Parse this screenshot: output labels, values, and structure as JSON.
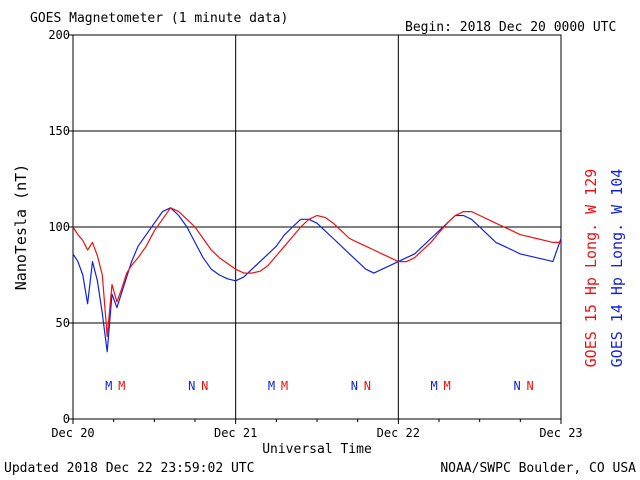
{
  "header": {
    "title": "GOES Magnetometer (1 minute data)",
    "begin": "Begin:  2018 Dec 20 0000 UTC"
  },
  "footer": {
    "updated": "Updated 2018 Dec 22 23:59:02 UTC",
    "credit": "NOAA/SWPC Boulder, CO USA"
  },
  "legend": {
    "goes15": "GOES 15 Hp  Long. W 129",
    "goes14": "GOES 14 Hp  Long. W 104"
  },
  "colors": {
    "goes15": "#ee1111",
    "goes14": "#1122dd",
    "axis": "#000000",
    "background": "#ffffff"
  },
  "markers": [
    {
      "day": 0.22,
      "letter": "M",
      "series": "goes14"
    },
    {
      "day": 0.3,
      "letter": "M",
      "series": "goes15"
    },
    {
      "day": 0.73,
      "letter": "N",
      "series": "goes14"
    },
    {
      "day": 0.81,
      "letter": "N",
      "series": "goes15"
    },
    {
      "day": 1.22,
      "letter": "M",
      "series": "goes14"
    },
    {
      "day": 1.3,
      "letter": "M",
      "series": "goes15"
    },
    {
      "day": 1.73,
      "letter": "N",
      "series": "goes14"
    },
    {
      "day": 1.81,
      "letter": "N",
      "series": "goes15"
    },
    {
      "day": 2.22,
      "letter": "M",
      "series": "goes14"
    },
    {
      "day": 2.3,
      "letter": "M",
      "series": "goes15"
    },
    {
      "day": 2.73,
      "letter": "N",
      "series": "goes14"
    },
    {
      "day": 2.81,
      "letter": "N",
      "series": "goes15"
    }
  ],
  "chart_data": {
    "type": "line",
    "title": "GOES Magnetometer (1 minute data)",
    "xlabel": "Universal Time",
    "ylabel": "NanoTesla (nT)",
    "xlim": [
      0,
      3
    ],
    "ylim": [
      0,
      200
    ],
    "x_ticks": [
      {
        "day": 0,
        "label": "Dec 20"
      },
      {
        "day": 1,
        "label": "Dec 21"
      },
      {
        "day": 2,
        "label": "Dec 22"
      },
      {
        "day": 3,
        "label": "Dec 23"
      }
    ],
    "y_ticks": [
      0,
      50,
      100,
      150,
      200
    ],
    "grid": true,
    "series": [
      {
        "name": "GOES 15 Hp  Long. W 129",
        "color": "#ee1111",
        "x": [
          0.0,
          0.03,
          0.06,
          0.09,
          0.12,
          0.15,
          0.18,
          0.21,
          0.24,
          0.27,
          0.3,
          0.33,
          0.36,
          0.4,
          0.45,
          0.5,
          0.55,
          0.6,
          0.65,
          0.7,
          0.75,
          0.8,
          0.85,
          0.9,
          0.95,
          1.0,
          1.05,
          1.1,
          1.15,
          1.2,
          1.25,
          1.3,
          1.35,
          1.4,
          1.45,
          1.5,
          1.55,
          1.6,
          1.65,
          1.7,
          1.75,
          1.8,
          1.85,
          1.9,
          1.95,
          2.0,
          2.05,
          2.1,
          2.15,
          2.2,
          2.25,
          2.3,
          2.35,
          2.4,
          2.45,
          2.5,
          2.55,
          2.6,
          2.65,
          2.7,
          2.75,
          2.8,
          2.85,
          2.9,
          2.95,
          3.0
        ],
        "values": [
          100,
          96,
          93,
          88,
          92,
          85,
          75,
          43,
          70,
          61,
          68,
          76,
          80,
          84,
          90,
          98,
          104,
          110,
          108,
          104,
          100,
          94,
          88,
          84,
          81,
          78,
          76,
          76,
          77,
          80,
          85,
          90,
          95,
          100,
          104,
          106,
          105,
          102,
          98,
          94,
          92,
          90,
          88,
          86,
          84,
          82,
          82,
          84,
          88,
          92,
          97,
          102,
          106,
          108,
          108,
          106,
          104,
          102,
          100,
          98,
          96,
          95,
          94,
          93,
          92,
          92
        ]
      },
      {
        "name": "GOES 14 Hp  Long. W 104",
        "color": "#1122dd",
        "x": [
          0.0,
          0.03,
          0.06,
          0.09,
          0.12,
          0.15,
          0.18,
          0.21,
          0.24,
          0.27,
          0.3,
          0.33,
          0.36,
          0.4,
          0.45,
          0.5,
          0.55,
          0.6,
          0.65,
          0.7,
          0.75,
          0.8,
          0.85,
          0.9,
          0.95,
          1.0,
          1.05,
          1.1,
          1.15,
          1.2,
          1.25,
          1.3,
          1.35,
          1.4,
          1.45,
          1.5,
          1.55,
          1.6,
          1.65,
          1.7,
          1.75,
          1.8,
          1.85,
          1.9,
          1.95,
          2.0,
          2.05,
          2.1,
          2.15,
          2.2,
          2.25,
          2.3,
          2.35,
          2.4,
          2.45,
          2.5,
          2.55,
          2.6,
          2.65,
          2.7,
          2.75,
          2.8,
          2.85,
          2.9,
          2.95,
          3.0
        ],
        "values": [
          86,
          82,
          75,
          60,
          82,
          72,
          55,
          35,
          65,
          58,
          66,
          74,
          82,
          90,
          96,
          102,
          108,
          110,
          106,
          100,
          92,
          84,
          78,
          75,
          73,
          72,
          74,
          78,
          82,
          86,
          90,
          96,
          100,
          104,
          104,
          102,
          98,
          94,
          90,
          86,
          82,
          78,
          76,
          78,
          80,
          82,
          84,
          86,
          90,
          94,
          98,
          102,
          106,
          106,
          104,
          100,
          96,
          92,
          90,
          88,
          86,
          85,
          84,
          83,
          82,
          94
        ]
      }
    ]
  }
}
